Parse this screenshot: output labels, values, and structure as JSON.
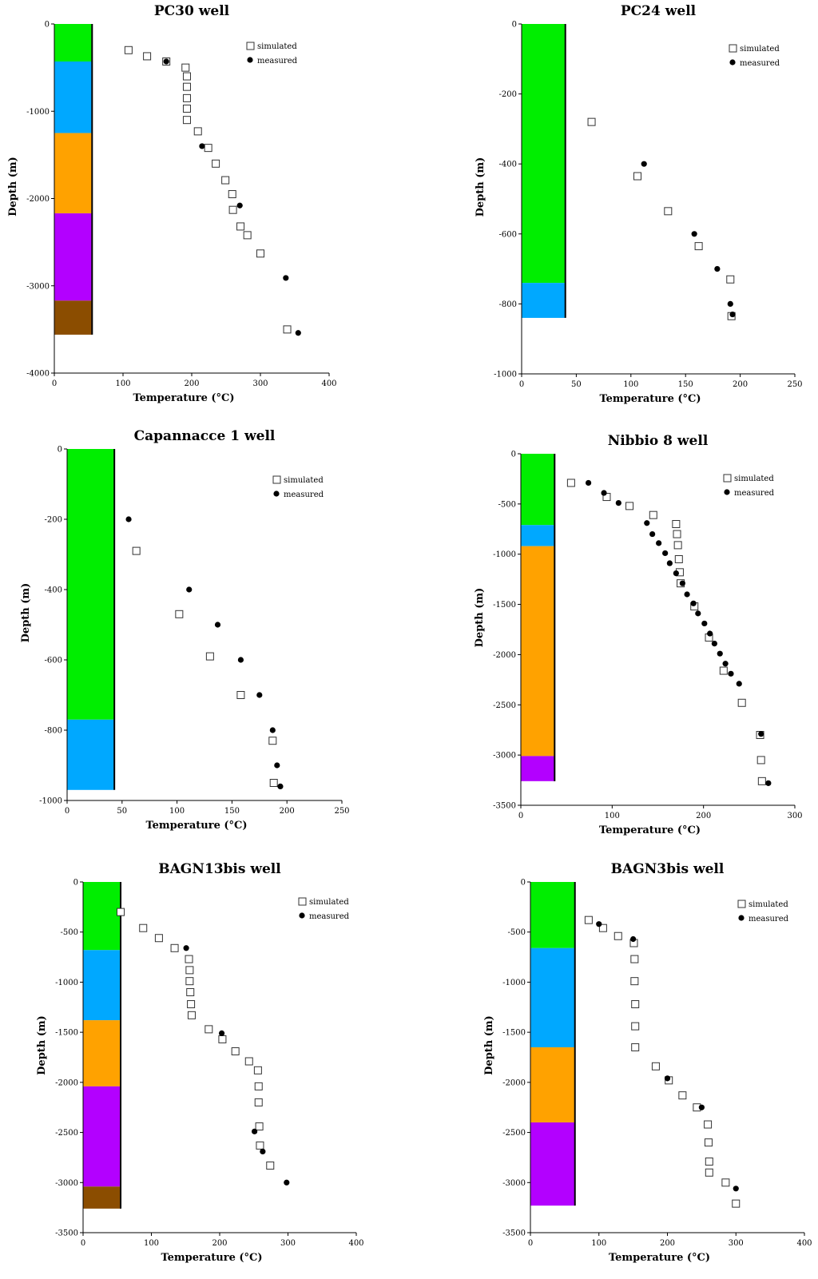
{
  "figure": {
    "colors": {
      "layer_green": "#00ee00",
      "layer_blue": "#00a8ff",
      "layer_orange": "#ffa200",
      "layer_purple": "#b300ff",
      "layer_brown": "#8b4d00",
      "measured": "#000000",
      "simulated_edge": "#333333"
    }
  },
  "chart_data": [
    {
      "type": "scatter",
      "title": "PC30 well",
      "xlabel": "Temperature (°C)",
      "ylabel": "Depth (m)",
      "xlim": [
        0,
        400
      ],
      "ylim": [
        -4000,
        0
      ],
      "xticks": [
        0,
        100,
        200,
        300,
        400
      ],
      "yticks": [
        0,
        -1000,
        -2000,
        -3000,
        -4000
      ],
      "legend": "top-right",
      "layers": [
        {
          "color": "layer_green",
          "top": 0,
          "bottom": -430
        },
        {
          "color": "layer_blue",
          "top": -430,
          "bottom": -1250
        },
        {
          "color": "layer_orange",
          "top": -1250,
          "bottom": -2170
        },
        {
          "color": "layer_purple",
          "top": -2170,
          "bottom": -3170
        },
        {
          "color": "layer_brown",
          "top": -3170,
          "bottom": -3560
        }
      ],
      "layer_width": 55,
      "series": [
        {
          "name": "simulated",
          "marker": "square",
          "points": [
            [
              108,
              -300
            ],
            [
              135,
              -370
            ],
            [
              163,
              -430
            ],
            [
              191,
              -500
            ],
            [
              193,
              -600
            ],
            [
              193,
              -720
            ],
            [
              193,
              -850
            ],
            [
              193,
              -970
            ],
            [
              193,
              -1100
            ],
            [
              209,
              -1230
            ],
            [
              224,
              -1420
            ],
            [
              235,
              -1600
            ],
            [
              249,
              -1790
            ],
            [
              259,
              -1950
            ],
            [
              260,
              -2130
            ],
            [
              271,
              -2320
            ],
            [
              281,
              -2420
            ],
            [
              300,
              -2630
            ],
            [
              339,
              -3500
            ]
          ]
        },
        {
          "name": "measured",
          "marker": "circle",
          "points": [
            [
              163,
              -430
            ],
            [
              215,
              -1400
            ],
            [
              270,
              -2080
            ],
            [
              337,
              -2910
            ],
            [
              355,
              -3540
            ]
          ]
        }
      ]
    },
    {
      "type": "scatter",
      "title": "PC24 well",
      "xlabel": "Temperature (°C)",
      "ylabel": "Depth (m)",
      "xlim": [
        0,
        250
      ],
      "ylim": [
        -1000,
        0
      ],
      "xticks": [
        0,
        50,
        100,
        150,
        200,
        250
      ],
      "yticks": [
        0,
        -200,
        -400,
        -600,
        -800,
        -1000
      ],
      "legend": "top-right",
      "layers": [
        {
          "color": "layer_green",
          "top": 0,
          "bottom": -740
        },
        {
          "color": "layer_blue",
          "top": -740,
          "bottom": -840
        }
      ],
      "layer_width": 40,
      "series": [
        {
          "name": "simulated",
          "marker": "square",
          "points": [
            [
              64,
              -280
            ],
            [
              106,
              -435
            ],
            [
              134,
              -535
            ],
            [
              162,
              -635
            ],
            [
              191,
              -730
            ],
            [
              192,
              -835
            ]
          ]
        },
        {
          "name": "measured",
          "marker": "circle",
          "points": [
            [
              112,
              -400
            ],
            [
              158,
              -600
            ],
            [
              179,
              -700
            ],
            [
              191,
              -800
            ],
            [
              193,
              -830
            ]
          ]
        }
      ]
    },
    {
      "type": "scatter",
      "title": "Capannacce 1 well",
      "xlabel": "Temperature (°C)",
      "ylabel": "Depth (m)",
      "xlim": [
        0,
        250
      ],
      "ylim": [
        -1000,
        0
      ],
      "xticks": [
        0,
        50,
        100,
        150,
        200,
        250
      ],
      "yticks": [
        0,
        -200,
        -400,
        -600,
        -800,
        -1000
      ],
      "legend": "top-right",
      "layers": [
        {
          "color": "layer_green",
          "top": 0,
          "bottom": -770
        },
        {
          "color": "layer_blue",
          "top": -770,
          "bottom": -970
        }
      ],
      "layer_width": 43,
      "series": [
        {
          "name": "simulated",
          "marker": "square",
          "points": [
            [
              63,
              -290
            ],
            [
              102,
              -470
            ],
            [
              130,
              -590
            ],
            [
              158,
              -700
            ],
            [
              187,
              -830
            ],
            [
              188,
              -950
            ]
          ]
        },
        {
          "name": "measured",
          "marker": "circle",
          "points": [
            [
              56,
              -200
            ],
            [
              111,
              -400
            ],
            [
              137,
              -500
            ],
            [
              158,
              -600
            ],
            [
              175,
              -700
            ],
            [
              187,
              -800
            ],
            [
              191,
              -900
            ],
            [
              194,
              -960
            ]
          ]
        }
      ]
    },
    {
      "type": "scatter",
      "title": "Nibbio 8 well",
      "xlabel": "Temperature (°C)",
      "ylabel": "Depth (m)",
      "xlim": [
        0,
        300
      ],
      "ylim": [
        -3500,
        0
      ],
      "xticks": [
        0,
        100,
        200,
        300
      ],
      "yticks": [
        0,
        -500,
        -1000,
        -1500,
        -2000,
        -2500,
        -3000,
        -3500
      ],
      "legend": "top-right",
      "layers": [
        {
          "color": "layer_green",
          "top": 0,
          "bottom": -710
        },
        {
          "color": "layer_blue",
          "top": -710,
          "bottom": -920
        },
        {
          "color": "layer_orange",
          "top": -920,
          "bottom": -3010
        },
        {
          "color": "layer_purple",
          "top": -3010,
          "bottom": -3260
        }
      ],
      "layer_width": 37,
      "series": [
        {
          "name": "simulated",
          "marker": "square",
          "points": [
            [
              55,
              -290
            ],
            [
              94,
              -430
            ],
            [
              119,
              -520
            ],
            [
              145,
              -610
            ],
            [
              170,
              -700
            ],
            [
              171,
              -800
            ],
            [
              172,
              -910
            ],
            [
              173,
              -1050
            ],
            [
              174,
              -1180
            ],
            [
              175,
              -1290
            ],
            [
              190,
              -1520
            ],
            [
              206,
              -1830
            ],
            [
              222,
              -2160
            ],
            [
              242,
              -2480
            ],
            [
              262,
              -2800
            ],
            [
              263,
              -3050
            ],
            [
              264,
              -3260
            ]
          ]
        },
        {
          "name": "measured",
          "marker": "circle",
          "points": [
            [
              74,
              -290
            ],
            [
              91,
              -390
            ],
            [
              107,
              -490
            ],
            [
              138,
              -690
            ],
            [
              144,
              -800
            ],
            [
              151,
              -890
            ],
            [
              158,
              -990
            ],
            [
              163,
              -1090
            ],
            [
              170,
              -1190
            ],
            [
              177,
              -1290
            ],
            [
              182,
              -1400
            ],
            [
              189,
              -1490
            ],
            [
              194,
              -1590
            ],
            [
              201,
              -1690
            ],
            [
              207,
              -1790
            ],
            [
              212,
              -1890
            ],
            [
              218,
              -1990
            ],
            [
              224,
              -2090
            ],
            [
              230,
              -2190
            ],
            [
              239,
              -2290
            ],
            [
              263,
              -2790
            ],
            [
              271,
              -3280
            ]
          ]
        }
      ]
    },
    {
      "type": "scatter",
      "title": "BAGN13bis well",
      "xlabel": "Temperature (°C)",
      "ylabel": "Depth (m)",
      "xlim": [
        0,
        400
      ],
      "ylim": [
        -3500,
        0
      ],
      "xticks": [
        0,
        100,
        200,
        300,
        400
      ],
      "yticks": [
        0,
        -500,
        -1000,
        -1500,
        -2000,
        -2500,
        -3000,
        -3500
      ],
      "legend": "top-right",
      "layers": [
        {
          "color": "layer_green",
          "top": 0,
          "bottom": -680
        },
        {
          "color": "layer_blue",
          "top": -680,
          "bottom": -1380
        },
        {
          "color": "layer_orange",
          "top": -1380,
          "bottom": -2040
        },
        {
          "color": "layer_purple",
          "top": -2040,
          "bottom": -3040
        },
        {
          "color": "layer_brown",
          "top": -3040,
          "bottom": -3260
        }
      ],
      "layer_width": 55,
      "series": [
        {
          "name": "simulated",
          "marker": "square",
          "points": [
            [
              55,
              -300
            ],
            [
              88,
              -460
            ],
            [
              111,
              -560
            ],
            [
              134,
              -660
            ],
            [
              155,
              -770
            ],
            [
              156,
              -880
            ],
            [
              156,
              -990
            ],
            [
              157,
              -1100
            ],
            [
              158,
              -1220
            ],
            [
              159,
              -1330
            ],
            [
              184,
              -1470
            ],
            [
              204,
              -1570
            ],
            [
              223,
              -1690
            ],
            [
              243,
              -1790
            ],
            [
              256,
              -1880
            ],
            [
              257,
              -2040
            ],
            [
              257,
              -2200
            ],
            [
              258,
              -2440
            ],
            [
              259,
              -2630
            ],
            [
              274,
              -2830
            ]
          ]
        },
        {
          "name": "measured",
          "marker": "circle",
          "points": [
            [
              151,
              -660
            ],
            [
              203,
              -1510
            ],
            [
              251,
              -2490
            ],
            [
              263,
              -2690
            ],
            [
              298,
              -3000
            ]
          ]
        }
      ]
    },
    {
      "type": "scatter",
      "title": "BAGN3bis well",
      "xlabel": "Temperature (°C)",
      "ylabel": "Depth (m)",
      "xlim": [
        0,
        400
      ],
      "ylim": [
        -3500,
        0
      ],
      "xticks": [
        0,
        100,
        200,
        300,
        400
      ],
      "yticks": [
        0,
        -500,
        -1000,
        -1500,
        -2000,
        -2500,
        -3000,
        -3500
      ],
      "legend": "top-right",
      "layers": [
        {
          "color": "layer_green",
          "top": 0,
          "bottom": -660
        },
        {
          "color": "layer_blue",
          "top": -660,
          "bottom": -1650
        },
        {
          "color": "layer_orange",
          "top": -1650,
          "bottom": -2400
        },
        {
          "color": "layer_purple",
          "top": -2400,
          "bottom": -3230
        }
      ],
      "layer_width": 65,
      "series": [
        {
          "name": "simulated",
          "marker": "square",
          "points": [
            [
              85,
              -380
            ],
            [
              106,
              -460
            ],
            [
              128,
              -540
            ],
            [
              151,
              -610
            ],
            [
              152,
              -770
            ],
            [
              152,
              -990
            ],
            [
              153,
              -1220
            ],
            [
              153,
              -1440
            ],
            [
              153,
              -1650
            ],
            [
              183,
              -1840
            ],
            [
              202,
              -1980
            ],
            [
              222,
              -2130
            ],
            [
              243,
              -2250
            ],
            [
              259,
              -2420
            ],
            [
              260,
              -2600
            ],
            [
              261,
              -2790
            ],
            [
              261,
              -2900
            ],
            [
              285,
              -3000
            ],
            [
              300,
              -3210
            ]
          ]
        },
        {
          "name": "measured",
          "marker": "circle",
          "points": [
            [
              100,
              -420
            ],
            [
              150,
              -570
            ],
            [
              200,
              -1960
            ],
            [
              250,
              -2250
            ],
            [
              300,
              -3060
            ]
          ]
        }
      ]
    }
  ]
}
